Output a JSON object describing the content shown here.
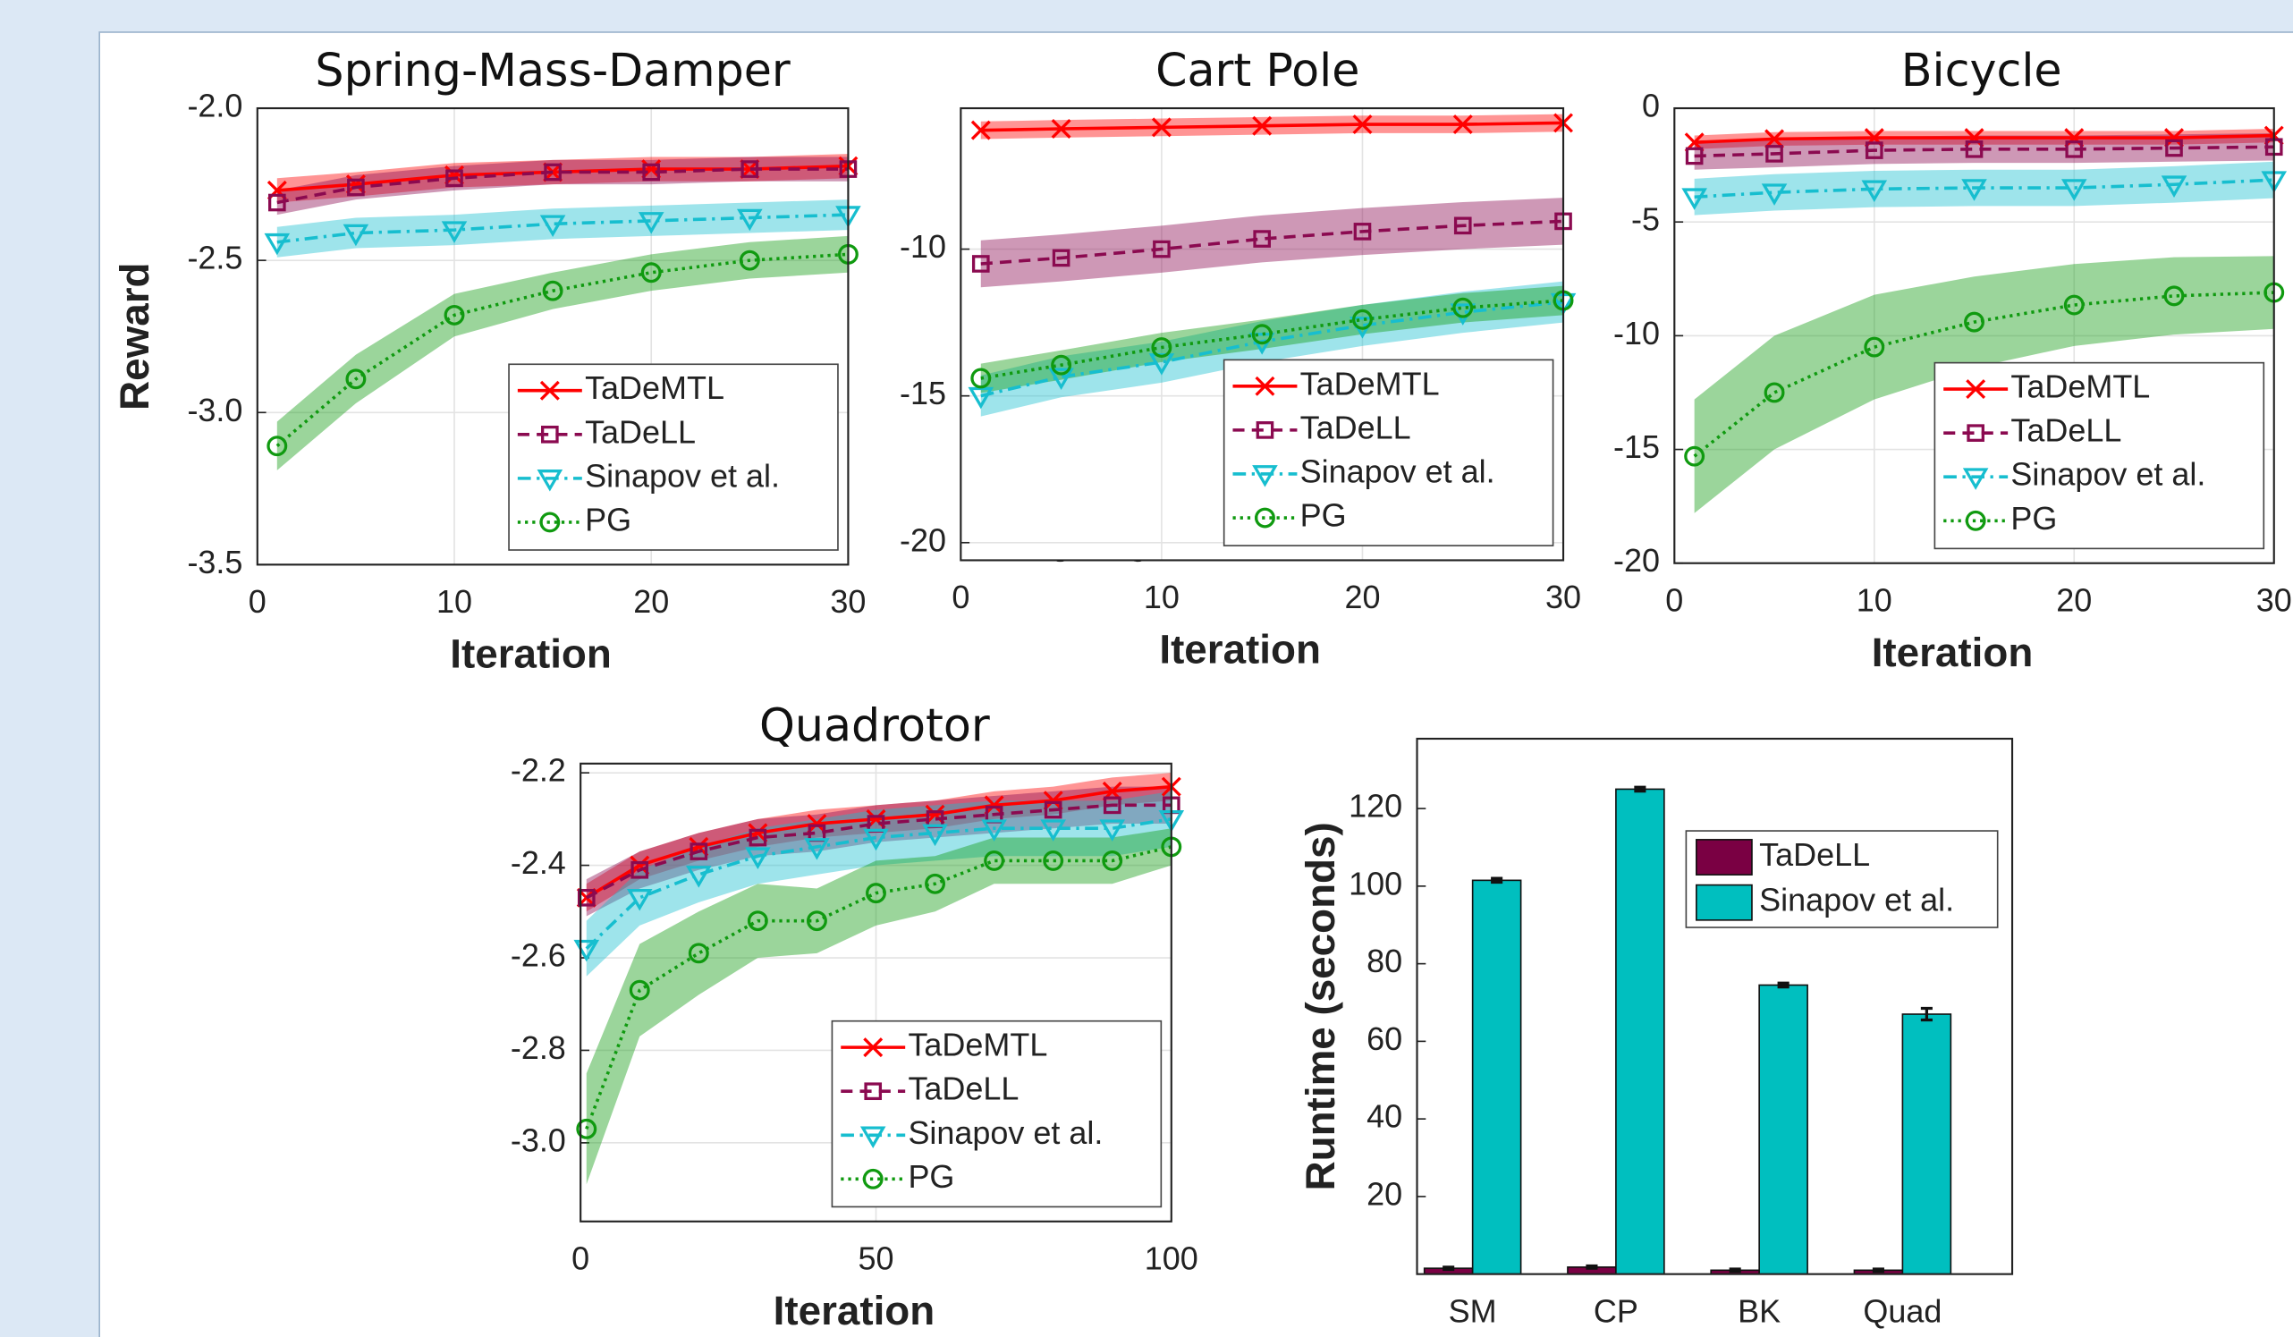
{
  "chart_data": [
    {
      "type": "line",
      "title": "Spring-Mass-Damper",
      "xlabel": "Iteration",
      "ylabel": "Reward",
      "grid": true,
      "legend": "lower right",
      "xlim": [
        0,
        30
      ],
      "ylim": [
        -3.5,
        -2.0
      ],
      "xticks": [
        0,
        10,
        20,
        30
      ],
      "yticks": [
        -3.5,
        {
          "value": -3,
          "label": "-3.0"
        },
        -2.5,
        {
          "value": -2,
          "label": "-2.0"
        }
      ],
      "x": [
        1,
        5,
        10,
        15,
        20,
        25,
        30
      ],
      "series": [
        {
          "name": "TaDeMTL",
          "color": "#ff0000",
          "marker": "x",
          "dash": "solid",
          "values": [
            -2.27,
            -2.25,
            -2.22,
            -2.21,
            -2.2,
            -2.2,
            -2.19
          ],
          "errors": [
            0.04,
            0.04,
            0.04,
            0.04,
            0.04,
            0.04,
            0.04
          ]
        },
        {
          "name": "TaDeLL",
          "color": "#8b0a50",
          "marker": "square",
          "dash": "dashed",
          "values": [
            -2.31,
            -2.26,
            -2.23,
            -2.21,
            -2.21,
            -2.2,
            -2.2
          ],
          "errors": [
            0.04,
            0.04,
            0.04,
            0.04,
            0.04,
            0.04,
            0.04
          ]
        },
        {
          "name": "Sinapov et al.",
          "color": "#17becf",
          "marker": "triangle",
          "dash": "dashdot",
          "values": [
            -2.44,
            -2.41,
            -2.4,
            -2.38,
            -2.37,
            -2.36,
            -2.35
          ],
          "errors": [
            0.05,
            0.05,
            0.05,
            0.05,
            0.05,
            0.05,
            0.05
          ]
        },
        {
          "name": "PG",
          "color": "#109a10",
          "marker": "circle",
          "dash": "dotted",
          "values": [
            -3.11,
            -2.89,
            -2.68,
            -2.6,
            -2.54,
            -2.5,
            -2.48
          ],
          "errors": [
            0.08,
            0.08,
            0.07,
            0.06,
            0.06,
            0.06,
            0.06
          ]
        }
      ]
    },
    {
      "type": "line",
      "title": "Cart Pole",
      "xlabel": "Iteration",
      "grid": true,
      "legend": "lower right",
      "xlim": [
        0,
        30
      ],
      "ylim": [
        -20.6,
        -5.2
      ],
      "xticks": [
        0,
        10,
        20,
        30
      ],
      "yticks": [
        -20,
        -15,
        -10
      ],
      "x": [
        1,
        5,
        10,
        15,
        20,
        25,
        30
      ],
      "series": [
        {
          "name": "TaDeMTL",
          "color": "#ff0000",
          "marker": "x",
          "dash": "solid",
          "values": [
            -5.95,
            -5.9,
            -5.85,
            -5.8,
            -5.75,
            -5.75,
            -5.7
          ],
          "errors": [
            0.3,
            0.3,
            0.3,
            0.3,
            0.3,
            0.3,
            0.3
          ]
        },
        {
          "name": "TaDeLL",
          "color": "#8b0a50",
          "marker": "square",
          "dash": "dashed",
          "values": [
            -10.5,
            -10.3,
            -10.0,
            -9.65,
            -9.4,
            -9.2,
            -9.05
          ],
          "errors": [
            0.8,
            0.8,
            0.8,
            0.8,
            0.8,
            0.8,
            0.8
          ]
        },
        {
          "name": "Sinapov et al.",
          "color": "#17becf",
          "marker": "triangle",
          "dash": "dashdot",
          "values": [
            -15.0,
            -14.35,
            -13.85,
            -13.15,
            -12.6,
            -12.15,
            -11.8
          ],
          "errors": [
            0.7,
            0.7,
            0.7,
            0.7,
            0.7,
            0.7,
            0.7
          ]
        },
        {
          "name": "PG",
          "color": "#109a10",
          "marker": "circle",
          "dash": "dotted",
          "values": [
            -14.4,
            -13.95,
            -13.35,
            -12.9,
            -12.4,
            -12.0,
            -11.75
          ],
          "errors": [
            0.5,
            0.5,
            0.5,
            0.5,
            0.5,
            0.5,
            0.5
          ]
        }
      ]
    },
    {
      "type": "line",
      "title": "Bicycle",
      "xlabel": "Iteration",
      "grid": true,
      "legend": "lower right",
      "xlim": [
        0,
        30
      ],
      "ylim": [
        -20,
        0
      ],
      "xticks": [
        0,
        10,
        20,
        30
      ],
      "yticks": [
        -20,
        -15,
        -10,
        -5,
        0
      ],
      "x": [
        1,
        5,
        10,
        15,
        20,
        25,
        30
      ],
      "series": [
        {
          "name": "TaDeMTL",
          "color": "#ff0000",
          "marker": "x",
          "dash": "solid",
          "values": [
            -1.5,
            -1.35,
            -1.3,
            -1.3,
            -1.3,
            -1.3,
            -1.2
          ],
          "errors": [
            0.3,
            0.3,
            0.3,
            0.3,
            0.3,
            0.3,
            0.3
          ]
        },
        {
          "name": "TaDeLL",
          "color": "#8b0a50",
          "marker": "square",
          "dash": "dashed",
          "values": [
            -2.1,
            -2.0,
            -1.85,
            -1.8,
            -1.8,
            -1.75,
            -1.7
          ],
          "errors": [
            0.6,
            0.6,
            0.6,
            0.6,
            0.6,
            0.6,
            0.6
          ]
        },
        {
          "name": "Sinapov et al.",
          "color": "#17becf",
          "marker": "triangle",
          "dash": "dashdot",
          "values": [
            -3.9,
            -3.7,
            -3.55,
            -3.5,
            -3.5,
            -3.35,
            -3.15
          ],
          "errors": [
            0.8,
            0.8,
            0.8,
            0.8,
            0.8,
            0.8,
            0.8
          ]
        },
        {
          "name": "PG",
          "color": "#109a10",
          "marker": "circle",
          "dash": "dotted",
          "values": [
            -15.3,
            -12.5,
            -10.5,
            -9.4,
            -8.65,
            -8.25,
            -8.1
          ],
          "errors": [
            2.5,
            2.5,
            2.3,
            2.0,
            1.8,
            1.7,
            1.6
          ]
        }
      ]
    },
    {
      "type": "line",
      "title": "Quadrotor",
      "xlabel": "Iteration",
      "grid": true,
      "legend": "lower right",
      "xlim": [
        0,
        100
      ],
      "ylim": [
        -3.17,
        -2.18
      ],
      "xticks": [
        0,
        50,
        100
      ],
      "yticks": [
        {
          "value": -3,
          "label": "-3.0"
        },
        -2.8,
        -2.6,
        -2.4,
        -2.2
      ],
      "x": [
        1,
        10,
        20,
        30,
        40,
        50,
        60,
        70,
        80,
        90,
        100
      ],
      "series": [
        {
          "name": "TaDeMTL",
          "color": "#ff0000",
          "marker": "x",
          "dash": "solid",
          "values": [
            -2.47,
            -2.4,
            -2.36,
            -2.33,
            -2.31,
            -2.3,
            -2.29,
            -2.27,
            -2.26,
            -2.24,
            -2.23
          ],
          "errors": [
            0.03,
            0.03,
            0.03,
            0.03,
            0.03,
            0.03,
            0.03,
            0.03,
            0.03,
            0.03,
            0.03
          ]
        },
        {
          "name": "TaDeLL",
          "color": "#8b0a50",
          "marker": "square",
          "dash": "dashed",
          "values": [
            -2.47,
            -2.41,
            -2.37,
            -2.34,
            -2.33,
            -2.31,
            -2.3,
            -2.29,
            -2.28,
            -2.27,
            -2.27
          ],
          "errors": [
            0.04,
            0.04,
            0.04,
            0.04,
            0.04,
            0.04,
            0.04,
            0.04,
            0.04,
            0.04,
            0.04
          ]
        },
        {
          "name": "Sinapov et al.",
          "color": "#17becf",
          "marker": "triangle",
          "dash": "dashdot",
          "values": [
            -2.58,
            -2.47,
            -2.42,
            -2.38,
            -2.36,
            -2.34,
            -2.33,
            -2.32,
            -2.32,
            -2.32,
            -2.3
          ],
          "errors": [
            0.06,
            0.06,
            0.06,
            0.06,
            0.06,
            0.06,
            0.06,
            0.06,
            0.06,
            0.06,
            0.06
          ]
        },
        {
          "name": "PG",
          "color": "#109a10",
          "marker": "circle",
          "dash": "dotted",
          "values": [
            -2.97,
            -2.67,
            -2.59,
            -2.52,
            -2.52,
            -2.46,
            -2.44,
            -2.39,
            -2.39,
            -2.39,
            -2.36
          ],
          "errors": [
            0.12,
            0.1,
            0.09,
            0.08,
            0.07,
            0.07,
            0.06,
            0.05,
            0.05,
            0.05,
            0.04
          ]
        }
      ]
    },
    {
      "type": "bar",
      "ylabel": "Runtime (seconds)",
      "legend": "upper right",
      "categories": [
        "SM",
        "CP",
        "BK",
        "Quad"
      ],
      "ylim": [
        0,
        138
      ],
      "yticks": [
        20,
        40,
        60,
        80,
        100,
        120
      ],
      "series": [
        {
          "name": "TaDeLL",
          "color": "#7a0043",
          "values": [
            1.5,
            1.8,
            1.0,
            1.0
          ],
          "errors": [
            0.3,
            0.3,
            0.3,
            0.3
          ]
        },
        {
          "name": "Sinapov et al.",
          "color": "#00bfbf",
          "values": [
            101.5,
            125,
            74.5,
            67
          ],
          "errors": [
            0.5,
            0.5,
            0.5,
            1.5
          ]
        }
      ]
    }
  ]
}
